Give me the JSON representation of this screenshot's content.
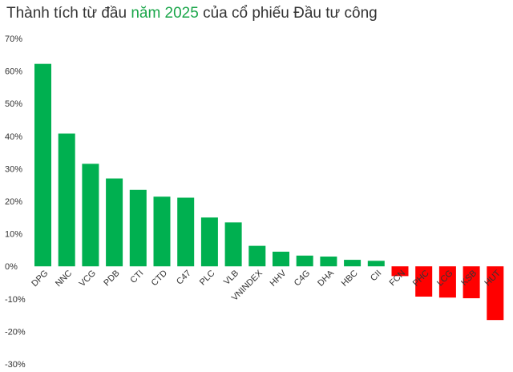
{
  "chart_data": {
    "type": "bar",
    "title": {
      "prefix": "Thành tích từ đầu ",
      "highlight": "năm 2025",
      "suffix": " của cổ phiếu Đầu tư công"
    },
    "categories": [
      "DPG",
      "NNC",
      "VCG",
      "PDB",
      "CTI",
      "CTD",
      "C47",
      "PLC",
      "VLB",
      "VNINDEX",
      "HHV",
      "C4G",
      "DHA",
      "HBC",
      "CII",
      "FCN",
      "PHC",
      "LCG",
      "KSB",
      "HUT"
    ],
    "values": [
      62.2,
      40.8,
      31.5,
      27.0,
      23.5,
      21.4,
      21.1,
      15.0,
      13.5,
      6.3,
      4.5,
      3.3,
      3.0,
      2.0,
      1.7,
      -3.0,
      -9.3,
      -9.6,
      -9.8,
      -16.5
    ],
    "ylim": [
      -30,
      70
    ],
    "yticks": [
      "70%",
      "60%",
      "50%",
      "40%",
      "30%",
      "20%",
      "10%",
      "0%",
      "-10%",
      "-20%",
      "-30%"
    ],
    "grid": false,
    "colors": {
      "positive": "#00b050",
      "negative": "#ff0000",
      "highlight": "#1aa64a"
    }
  }
}
